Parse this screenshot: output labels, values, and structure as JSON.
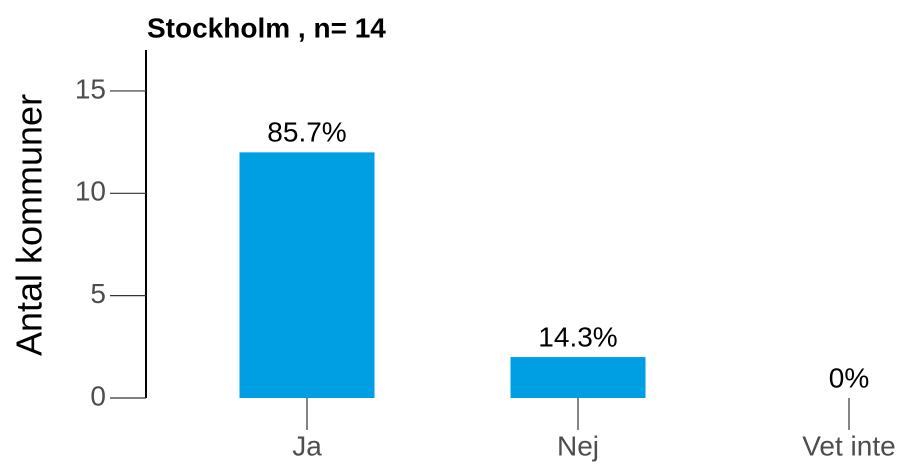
{
  "chart_data": {
    "type": "bar",
    "title": "Stockholm , n= 14",
    "y_label": "Antal kommuner",
    "categories": [
      "Ja",
      "Nej",
      "Vet inte"
    ],
    "values": [
      12,
      2,
      0
    ],
    "value_labels": [
      "85.7%",
      "14.3%",
      "0%"
    ],
    "color": "#009fe3",
    "ylim": [
      0,
      17
    ],
    "yticks": [
      0,
      5,
      10,
      15
    ],
    "grid": false
  }
}
